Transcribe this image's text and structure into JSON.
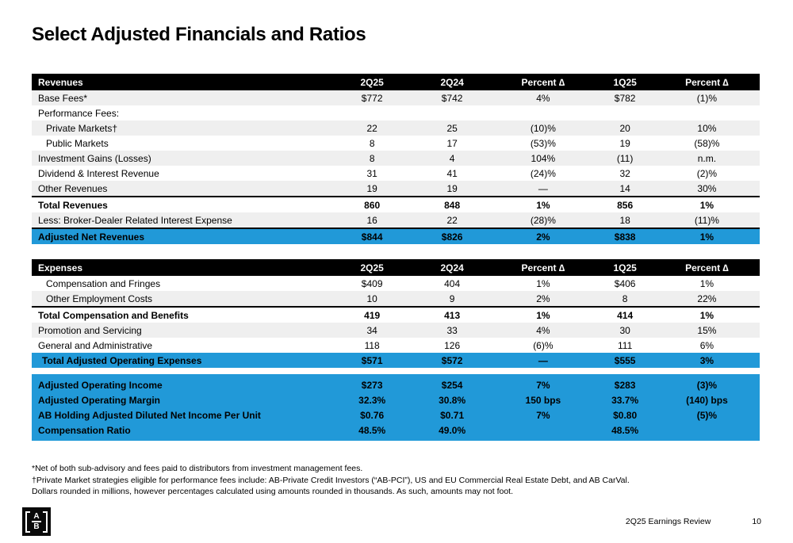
{
  "slide": {
    "title": "Select Adjusted Financials and Ratios",
    "footer": {
      "deck_name": "2Q25 Earnings Review",
      "page_number": "10",
      "logo_top": "A",
      "logo_bottom": "B"
    }
  },
  "colors": {
    "accent_blue": "#2199d8",
    "stripe_gray": "#efefef",
    "header_black": "#000000"
  },
  "revenues_table": {
    "columns": [
      "Revenues",
      "2Q25",
      "2Q24",
      "Percent ∆",
      "1Q25",
      "Percent ∆"
    ],
    "rows": [
      {
        "label": "Base Fees*",
        "cells": [
          "$772",
          "$742",
          "4%",
          "$782",
          "(1)%"
        ],
        "stripe": true
      },
      {
        "label": "Performance Fees:",
        "cells": [
          "",
          "",
          "",
          "",
          ""
        ]
      },
      {
        "label": "Private Markets†",
        "cells": [
          "22",
          "25",
          "(10)%",
          "20",
          "10%"
        ],
        "stripe": true,
        "indent": true
      },
      {
        "label": "Public Markets",
        "cells": [
          "8",
          "17",
          "(53)%",
          "19",
          "(58)%"
        ],
        "indent": true
      },
      {
        "label": "Investment Gains (Losses)",
        "cells": [
          "8",
          "4",
          "104%",
          "(11)",
          "n.m."
        ],
        "stripe": true
      },
      {
        "label": "Dividend & Interest Revenue",
        "cells": [
          "31",
          "41",
          "(24)%",
          "32",
          "(2)%"
        ]
      },
      {
        "label": "Other Revenues",
        "cells": [
          "19",
          "19",
          "—",
          "14",
          "30%"
        ],
        "stripe": true
      },
      {
        "label": "Total Revenues",
        "cells": [
          "860",
          "848",
          "1%",
          "856",
          "1%"
        ],
        "bold": true,
        "border_top": true
      },
      {
        "label": "Less: Broker-Dealer Related Interest Expense",
        "cells": [
          "16",
          "22",
          "(28)%",
          "18",
          "(11)%"
        ],
        "stripe": true
      },
      {
        "label": "Adjusted Net Revenues",
        "cells": [
          "$844",
          "$826",
          "2%",
          "$838",
          "1%"
        ],
        "bold": true,
        "highlight": true,
        "border_top": true
      }
    ]
  },
  "expenses_table": {
    "columns": [
      "Expenses",
      "2Q25",
      "2Q24",
      "Percent ∆",
      "1Q25",
      "Percent ∆"
    ],
    "rows": [
      {
        "label": "Compensation and Fringes",
        "cells": [
          "$409",
          "404",
          "1%",
          "$406",
          "1%"
        ],
        "indent": true
      },
      {
        "label": "Other Employment Costs",
        "cells": [
          "10",
          "9",
          "2%",
          "8",
          "22%"
        ],
        "stripe": true,
        "indent": true
      },
      {
        "label": "Total Compensation and Benefits",
        "cells": [
          "419",
          "413",
          "1%",
          "414",
          "1%"
        ],
        "bold": true,
        "border_top": true
      },
      {
        "label": "Promotion and Servicing",
        "cells": [
          "34",
          "33",
          "4%",
          "30",
          "15%"
        ],
        "stripe": true
      },
      {
        "label": "General and Administrative",
        "cells": [
          "118",
          "126",
          "(6)%",
          "111",
          "6%"
        ]
      },
      {
        "label": "Total Adjusted Operating Expenses",
        "cells": [
          "$571",
          "$572",
          "—",
          "$555",
          "3%"
        ],
        "bold": true,
        "highlight": true,
        "indent_small": true
      }
    ]
  },
  "summary_block": {
    "rows": [
      {
        "label": "Adjusted Operating Income",
        "cells": [
          "$273",
          "$254",
          "7%",
          "$283",
          "(3)%"
        ]
      },
      {
        "label": "Adjusted Operating Margin",
        "cells": [
          "32.3%",
          "30.8%",
          "150 bps",
          "33.7%",
          "(140) bps"
        ]
      },
      {
        "label": "AB Holding Adjusted Diluted Net Income Per Unit",
        "cells": [
          "$0.76",
          "$0.71",
          "7%",
          "$0.80",
          "(5)%"
        ]
      },
      {
        "label": "Compensation Ratio",
        "cells": [
          "48.5%",
          "49.0%",
          "",
          "48.5%",
          ""
        ]
      }
    ]
  },
  "footnotes": [
    "*Net of both sub-advisory and fees paid to distributors from investment management fees.",
    "†Private Market strategies eligible for performance fees include: AB-Private Credit Investors (“AB-PCI”), US and EU Commercial Real Estate Debt, and AB CarVal.",
    "Dollars rounded in millions, however percentages calculated using amounts rounded in thousands. As such, amounts may not foot."
  ]
}
